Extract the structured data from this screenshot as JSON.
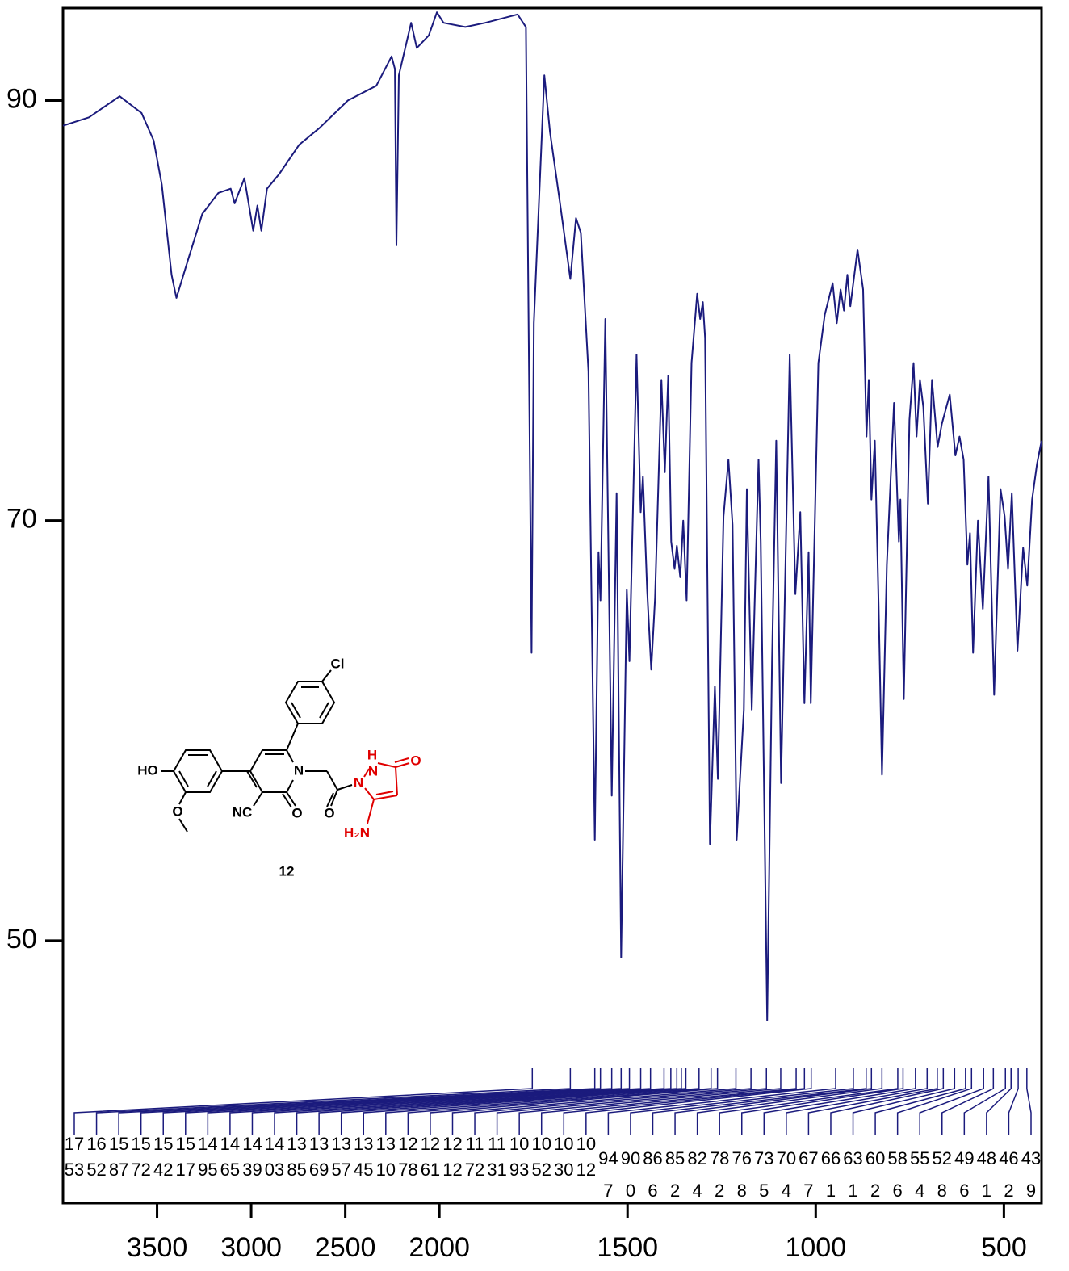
{
  "chart_data": {
    "type": "line",
    "x": [
      4000,
      3862,
      3699,
      3582,
      3518,
      3475,
      3423,
      3397,
      3346,
      3260,
      3174,
      3109,
      3088,
      3036,
      2989,
      2967,
      2946,
      2916,
      2851,
      2744,
      2636,
      2486,
      2335,
      2254,
      2236,
      2228,
      2215,
      2150,
      2120,
      2056,
      2013,
      1989,
      1931,
      1878,
      1792,
      1770,
      1755,
      1749,
      1721,
      1706,
      1680,
      1652,
      1637,
      1624,
      1604,
      1587,
      1577,
      1572,
      1559,
      1542,
      1529,
      1517,
      1502,
      1495,
      1476,
      1465,
      1459,
      1448,
      1437,
      1427,
      1410,
      1401,
      1392,
      1384,
      1375,
      1369,
      1360,
      1352,
      1343,
      1330,
      1315,
      1307,
      1300,
      1294,
      1281,
      1268,
      1260,
      1245,
      1232,
      1221,
      1210,
      1191,
      1183,
      1170,
      1152,
      1146,
      1129,
      1116,
      1105,
      1092,
      1069,
      1054,
      1041,
      1030,
      1019,
      1013,
      993,
      976,
      955,
      944,
      934,
      925,
      916,
      908,
      889,
      874,
      865,
      859,
      852,
      843,
      833,
      824,
      811,
      792,
      779,
      775,
      766,
      751,
      740,
      732,
      723,
      714,
      702,
      691,
      676,
      665,
      644,
      629,
      618,
      607,
      597,
      590,
      582,
      569,
      556,
      541,
      526,
      509,
      498,
      489,
      479,
      464,
      449,
      438,
      425,
      412,
      400
    ],
    "series": [
      {
        "color": "#1b1b7d",
        "values": [
          88.8,
          89.2,
          90.2,
          89.4,
          88.1,
          86.0,
          81.7,
          80.6,
          82.1,
          84.6,
          85.6,
          85.8,
          85.1,
          86.3,
          83.8,
          85.0,
          83.8,
          85.8,
          86.5,
          87.9,
          88.7,
          90.0,
          90.7,
          92.1,
          91.5,
          83.1,
          91.2,
          93.7,
          92.5,
          93.1,
          94.2,
          93.7,
          93.5,
          93.7,
          94.1,
          93.5,
          63.7,
          79.4,
          91.2,
          88.5,
          85.2,
          81.5,
          84.4,
          83.7,
          77.1,
          54.8,
          68.5,
          66.2,
          79.6,
          56.9,
          71.3,
          49.2,
          66.7,
          63.3,
          77.9,
          70.4,
          72.1,
          66.7,
          62.9,
          66.3,
          76.7,
          72.3,
          76.9,
          69.0,
          67.7,
          68.8,
          67.3,
          70.0,
          66.2,
          77.5,
          80.8,
          79.6,
          80.4,
          78.7,
          54.6,
          62.1,
          57.7,
          70.2,
          72.9,
          69.8,
          54.8,
          61.0,
          71.5,
          61.0,
          72.9,
          69.0,
          46.2,
          63.3,
          73.8,
          57.5,
          77.9,
          66.5,
          70.4,
          61.3,
          68.5,
          61.3,
          77.5,
          79.8,
          81.3,
          79.4,
          81.0,
          80.0,
          81.7,
          80.2,
          82.9,
          81.0,
          74.0,
          76.7,
          71.0,
          73.8,
          66.0,
          57.9,
          67.9,
          75.6,
          69.0,
          71.0,
          61.5,
          74.8,
          77.5,
          74.0,
          76.7,
          75.4,
          70.8,
          76.7,
          73.5,
          74.6,
          76.0,
          73.1,
          74.0,
          72.9,
          67.9,
          69.4,
          63.7,
          70.0,
          65.8,
          72.1,
          61.7,
          71.5,
          70.2,
          67.7,
          71.3,
          63.8,
          68.7,
          66.9,
          71.0,
          72.7,
          73.8
        ]
      }
    ],
    "xlim": [
      4000,
      400
    ],
    "ylim": [
      37.5,
      94.4
    ],
    "xticks": [
      3500,
      3000,
      2500,
      2000,
      1500,
      1000,
      500
    ],
    "yticks": [
      50,
      70,
      90
    ],
    "x_scale_break": {
      "at": 2000,
      "ratio": 2
    },
    "peak_labels": [
      1753,
      1652,
      1587,
      1572,
      1542,
      1517,
      1495,
      1465,
      1439,
      1403,
      1385,
      1369,
      1357,
      1345,
      1310,
      1278,
      1261,
      1212,
      1172,
      1131,
      1093,
      1052,
      1030,
      1012,
      947,
      900,
      866,
      852,
      824,
      782,
      768,
      735,
      704,
      677,
      661,
      631,
      602,
      586,
      554,
      528,
      496,
      481,
      462,
      439
    ]
  },
  "structure": {
    "atoms": [
      "Cl",
      "HO",
      "O",
      "NC",
      "O",
      "N",
      "O",
      "N",
      "H",
      "N",
      "O",
      "H₂N"
    ],
    "compound_number": "12"
  }
}
